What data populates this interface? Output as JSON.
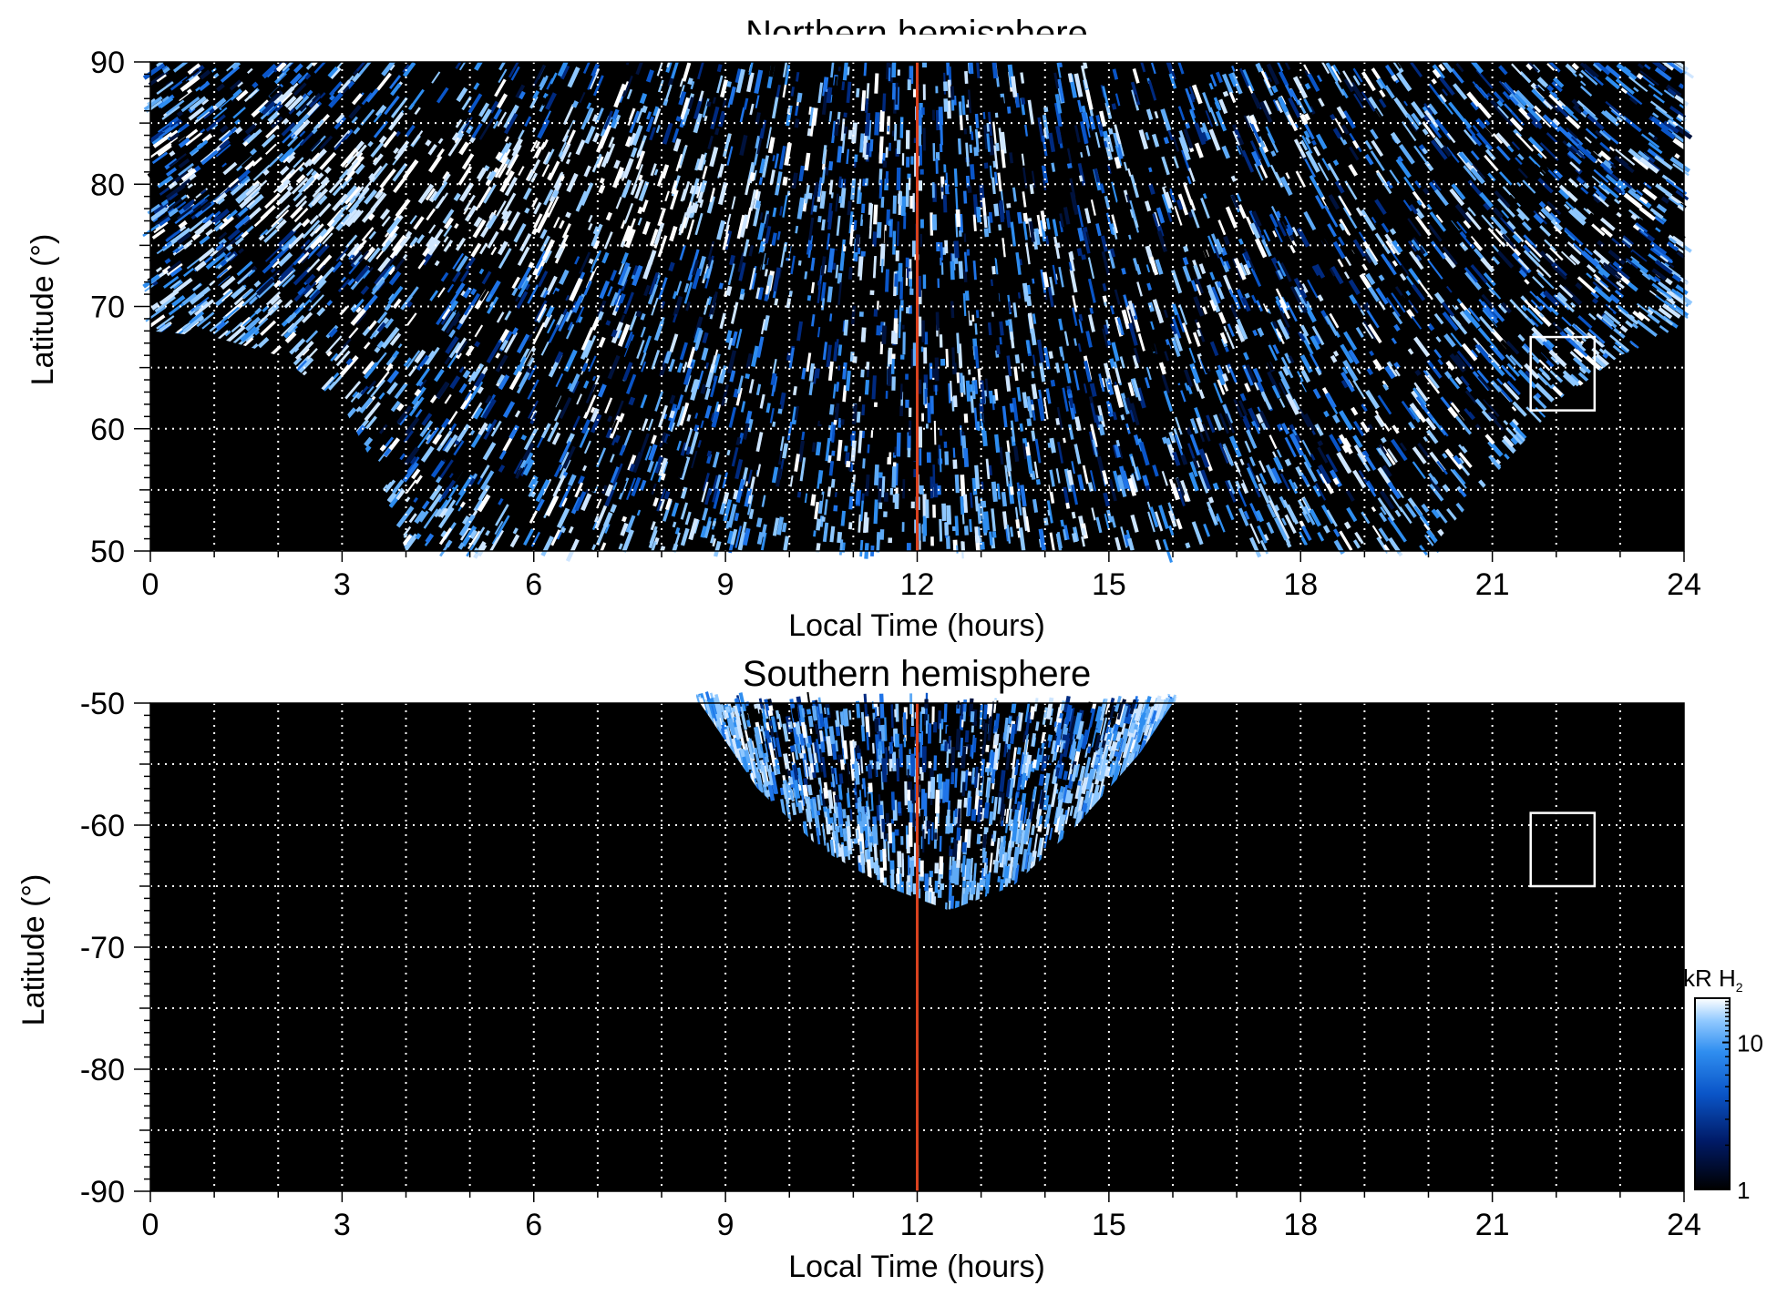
{
  "chart_data": [
    {
      "type": "heatmap",
      "title": "Northern hemisphere",
      "xlabel": "Local Time (hours)",
      "ylabel": "Latitude (°)",
      "xlim": [
        0,
        24
      ],
      "ylim": [
        50,
        90
      ],
      "x_ticks": [
        0,
        3,
        6,
        9,
        12,
        15,
        18,
        21,
        24
      ],
      "y_ticks": [
        50,
        60,
        70,
        80,
        90
      ],
      "x_grid": [
        1,
        2,
        3,
        4,
        5,
        6,
        7,
        8,
        9,
        10,
        11,
        12,
        13,
        14,
        15,
        16,
        17,
        18,
        19,
        20,
        21,
        22,
        23
      ],
      "y_grid": [
        55,
        60,
        65,
        70,
        75,
        80,
        85
      ],
      "grid": true,
      "reference_line": {
        "x": 12,
        "color": "#d9421f"
      },
      "marker_box": {
        "x": [
          21.6,
          22.6
        ],
        "y": [
          61.5,
          67.5
        ]
      },
      "coverage": {
        "description": "observed emission region (bright blue streaks) above a curved boundary",
        "boundary_lat_by_lt": [
          [
            0,
            68
          ],
          [
            1,
            67.5
          ],
          [
            2,
            66
          ],
          [
            3,
            62
          ],
          [
            3.5,
            57
          ],
          [
            4,
            50
          ],
          [
            20,
            50
          ],
          [
            21,
            56
          ],
          [
            22,
            62
          ],
          [
            23,
            66
          ],
          [
            24,
            68
          ]
        ]
      },
      "bright_region": {
        "lt": [
          1.5,
          9.5
        ],
        "lat": [
          74,
          84
        ],
        "intensity": "saturated ~20 kR"
      }
    },
    {
      "type": "heatmap",
      "title": "Southern hemisphere",
      "xlabel": "Local Time (hours)",
      "ylabel": "Latitude (°)",
      "xlim": [
        0,
        24
      ],
      "ylim": [
        -90,
        -50
      ],
      "x_ticks": [
        0,
        3,
        6,
        9,
        12,
        15,
        18,
        21,
        24
      ],
      "y_ticks": [
        -90,
        -80,
        -70,
        -60,
        -50
      ],
      "x_grid": [
        1,
        2,
        3,
        4,
        5,
        6,
        7,
        8,
        9,
        10,
        11,
        12,
        13,
        14,
        15,
        16,
        17,
        18,
        19,
        20,
        21,
        22,
        23
      ],
      "y_grid": [
        -85,
        -80,
        -75,
        -70,
        -65,
        -60,
        -55
      ],
      "grid": true,
      "reference_line": {
        "x": 12,
        "color": "#d9421f"
      },
      "marker_box": {
        "x": [
          21.6,
          22.6
        ],
        "y": [
          -65,
          -59
        ]
      },
      "coverage": {
        "description": "observed emission region (blue streaks) forming a bowl centred near noon",
        "boundary_lat_by_lt": [
          [
            8.6,
            -50
          ],
          [
            9.5,
            -57
          ],
          [
            10.5,
            -62
          ],
          [
            11.5,
            -65
          ],
          [
            12.5,
            -67
          ],
          [
            13.5,
            -65
          ],
          [
            14.5,
            -60
          ],
          [
            15.5,
            -54
          ],
          [
            16,
            -50
          ]
        ]
      }
    }
  ],
  "colorbar": {
    "title_main": "kR H",
    "title_sub": "2",
    "ticks": [
      "10",
      "1"
    ],
    "scale": "log",
    "range": [
      1,
      20
    ],
    "colors": [
      "#000000",
      "#001a66",
      "#0a55c8",
      "#2f8ef0",
      "#8fc8ff",
      "#ffffff"
    ]
  }
}
